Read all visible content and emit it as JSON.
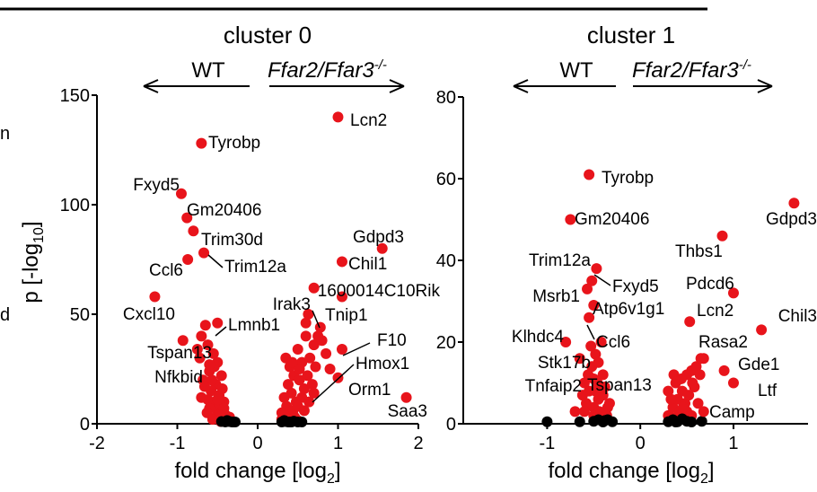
{
  "left_edge_fragments": [
    "n",
    "d"
  ],
  "chart_data": [
    {
      "type": "scatter",
      "title": "cluster 0",
      "direction_left": "WT",
      "direction_right": "Ffar2/Ffar3",
      "direction_right_sup": "-/-",
      "xlabel": "fold change [log",
      "xlabel_sub": "2",
      "xlabel_end": "]",
      "ylabel": "p [-log",
      "ylabel_sub": "10",
      "ylabel_end": "]",
      "xlim": [
        -2,
        2
      ],
      "ylim": [
        0,
        150
      ],
      "xticks": [
        "-2",
        "-1",
        "0",
        "1",
        "2"
      ],
      "xtick_values": [
        -2,
        -1,
        0,
        1,
        2
      ],
      "yticks": [
        "0",
        "50",
        "100",
        "150"
      ],
      "ytick_values": [
        0,
        50,
        100,
        150
      ],
      "colors": {
        "significant": "#e8141b",
        "non_significant": "#000000"
      },
      "labeled_points": [
        {
          "gene": "Lcn2",
          "x": 1.0,
          "y": 140
        },
        {
          "gene": "Tyrobp",
          "x": -0.7,
          "y": 128
        },
        {
          "gene": "Fxyd5",
          "x": -0.95,
          "y": 105
        },
        {
          "gene": "Gm20406",
          "x": -0.88,
          "y": 94
        },
        {
          "gene": "Trim30d",
          "x": -0.8,
          "y": 88
        },
        {
          "gene": "Gdpd3",
          "x": 1.55,
          "y": 80
        },
        {
          "gene": "Trim12a",
          "x": -0.67,
          "y": 78
        },
        {
          "gene": "Ccl6",
          "x": -0.87,
          "y": 75
        },
        {
          "gene": "Chil1",
          "x": 1.05,
          "y": 74
        },
        {
          "gene": "1600014C10Rik",
          "x": 1.05,
          "y": 58
        },
        {
          "gene": "Irak3",
          "x": 0.7,
          "y": 62
        },
        {
          "gene": "Cxcl10",
          "x": -1.28,
          "y": 58
        },
        {
          "gene": "Tnip1",
          "x": 0.63,
          "y": 50
        },
        {
          "gene": "Lmnb1",
          "x": -0.5,
          "y": 46
        },
        {
          "gene": "F10",
          "x": 1.05,
          "y": 34
        },
        {
          "gene": "Tspan13",
          "x": -0.93,
          "y": 38
        },
        {
          "gene": "Hmox1",
          "x": 0.9,
          "y": 25
        },
        {
          "gene": "Nfkbid",
          "x": -0.6,
          "y": 27
        },
        {
          "gene": "Orm1",
          "x": 1.0,
          "y": 21
        },
        {
          "gene": "Saa3",
          "x": 1.85,
          "y": 12
        }
      ],
      "significant_points": [
        [
          -0.65,
          45
        ],
        [
          -0.7,
          40
        ],
        [
          -0.62,
          36
        ],
        [
          -0.55,
          32
        ],
        [
          -0.72,
          30
        ],
        [
          -0.5,
          28
        ],
        [
          -0.6,
          24
        ],
        [
          -0.45,
          22
        ],
        [
          -0.68,
          20
        ],
        [
          -0.52,
          18
        ],
        [
          -0.58,
          15
        ],
        [
          -0.48,
          13
        ],
        [
          -0.62,
          11
        ],
        [
          -0.42,
          10
        ],
        [
          -0.55,
          8
        ],
        [
          -0.5,
          6
        ],
        [
          -0.45,
          5
        ],
        [
          -0.4,
          4
        ],
        [
          -0.52,
          3
        ],
        [
          -0.38,
          2
        ],
        [
          -0.6,
          7
        ],
        [
          -0.44,
          16
        ],
        [
          -0.7,
          12
        ],
        [
          -0.57,
          20
        ],
        [
          -0.47,
          9
        ],
        [
          -0.63,
          5
        ],
        [
          -0.35,
          3
        ],
        [
          -0.42,
          7
        ],
        [
          -0.5,
          11
        ],
        [
          -0.66,
          17
        ],
        [
          -0.54,
          26
        ],
        [
          -0.75,
          34
        ],
        [
          -0.48,
          4
        ],
        [
          -0.4,
          1.5
        ],
        [
          -0.56,
          2
        ],
        [
          -0.46,
          1
        ],
        [
          0.35,
          30
        ],
        [
          0.4,
          26
        ],
        [
          0.5,
          34
        ],
        [
          0.55,
          28
        ],
        [
          0.6,
          40
        ],
        [
          0.7,
          36
        ],
        [
          0.45,
          22
        ],
        [
          0.38,
          18
        ],
        [
          0.52,
          20
        ],
        [
          0.65,
          30
        ],
        [
          0.42,
          14
        ],
        [
          0.33,
          12
        ],
        [
          0.58,
          16
        ],
        [
          0.48,
          10
        ],
        [
          0.36,
          8
        ],
        [
          0.44,
          6
        ],
        [
          0.3,
          5
        ],
        [
          0.4,
          4
        ],
        [
          0.55,
          12
        ],
        [
          0.62,
          22
        ],
        [
          0.75,
          40
        ],
        [
          0.8,
          38
        ],
        [
          0.85,
          32
        ],
        [
          0.72,
          26
        ],
        [
          0.68,
          18
        ],
        [
          0.5,
          8
        ],
        [
          0.35,
          3
        ],
        [
          0.46,
          3
        ],
        [
          0.3,
          2
        ],
        [
          0.38,
          1.5
        ],
        [
          0.58,
          6
        ],
        [
          0.64,
          10
        ],
        [
          0.52,
          25
        ],
        [
          0.43,
          28
        ],
        [
          0.78,
          44
        ],
        [
          0.6,
          46
        ],
        [
          0.42,
          2
        ],
        [
          0.5,
          1.5
        ],
        [
          0.33,
          4
        ],
        [
          0.7,
          14
        ]
      ],
      "nonsignificant_points": [
        [
          -0.45,
          1
        ],
        [
          -0.4,
          0.5
        ],
        [
          -0.35,
          1
        ],
        [
          -0.3,
          0.5
        ],
        [
          -0.38,
          1.5
        ],
        [
          -0.32,
          0.8
        ],
        [
          -0.28,
          0.4
        ],
        [
          0.3,
          0.5
        ],
        [
          0.35,
          1
        ],
        [
          0.4,
          0.6
        ],
        [
          0.45,
          1.2
        ],
        [
          0.38,
          0.4
        ],
        [
          0.5,
          0.8
        ],
        [
          0.33,
          1.5
        ],
        [
          0.55,
          0.5
        ],
        [
          0.42,
          0.2
        ]
      ]
    },
    {
      "type": "scatter",
      "title": "cluster 1",
      "direction_left": "WT",
      "direction_right": "Ffar2/Ffar3",
      "direction_right_sup": "-/-",
      "xlabel": "fold change [log",
      "xlabel_sub": "2",
      "xlabel_end": "]",
      "xlim": [
        -1.9,
        1.8
      ],
      "ylim": [
        0,
        80
      ],
      "xticks": [
        "-1",
        "0",
        "1"
      ],
      "xtick_values": [
        -1,
        0,
        1
      ],
      "yticks": [
        "0",
        "20",
        "40",
        "60",
        "80"
      ],
      "ytick_values": [
        0,
        20,
        40,
        60,
        80
      ],
      "colors": {
        "significant": "#e8141b",
        "non_significant": "#000000"
      },
      "labeled_points": [
        {
          "gene": "Tyrobp",
          "x": -0.55,
          "y": 61
        },
        {
          "gene": "Gdpd3",
          "x": 1.65,
          "y": 54
        },
        {
          "gene": "Gm20406",
          "x": -0.75,
          "y": 50
        },
        {
          "gene": "Thbs1",
          "x": 0.88,
          "y": 46
        },
        {
          "gene": "Trim12a",
          "x": -0.47,
          "y": 38
        },
        {
          "gene": "Fxyd5",
          "x": -0.52,
          "y": 35
        },
        {
          "gene": "Pdcd6",
          "x": 1.0,
          "y": 32
        },
        {
          "gene": "Msrb1",
          "x": -0.57,
          "y": 33
        },
        {
          "gene": "Atp6v1g1",
          "x": -0.5,
          "y": 29
        },
        {
          "gene": "Lcn2",
          "x": 0.53,
          "y": 25
        },
        {
          "gene": "Chil3",
          "x": 1.3,
          "y": 23
        },
        {
          "gene": "Klhdc4",
          "x": -0.8,
          "y": 20
        },
        {
          "gene": "Ccl6",
          "x": -0.55,
          "y": 26
        },
        {
          "gene": "Rasa2",
          "x": 0.65,
          "y": 16
        },
        {
          "gene": "Stk17b",
          "x": -0.45,
          "y": 15
        },
        {
          "gene": "Gde1",
          "x": 0.9,
          "y": 13
        },
        {
          "gene": "Tnfaip2",
          "x": -0.5,
          "y": 11
        },
        {
          "gene": "Tspan13",
          "x": -0.48,
          "y": 8
        },
        {
          "gene": "Ltf",
          "x": 1.0,
          "y": 10
        },
        {
          "gene": "Camp",
          "x": 0.68,
          "y": 3
        }
      ],
      "significant_points": [
        [
          -0.7,
          3
        ],
        [
          -0.5,
          4
        ],
        [
          -0.55,
          8
        ],
        [
          -0.45,
          6
        ],
        [
          -0.6,
          10
        ],
        [
          -0.4,
          12
        ],
        [
          -0.52,
          14
        ],
        [
          -0.38,
          9
        ],
        [
          -0.48,
          17
        ],
        [
          -0.42,
          20
        ],
        [
          -0.58,
          5
        ],
        [
          -0.35,
          4
        ],
        [
          -0.62,
          7
        ],
        [
          -0.44,
          3
        ],
        [
          -0.5,
          2
        ],
        [
          -0.36,
          2
        ],
        [
          -0.56,
          12
        ],
        [
          -0.46,
          10
        ],
        [
          -0.4,
          7
        ],
        [
          -0.65,
          16
        ],
        [
          -0.53,
          19
        ],
        [
          -0.33,
          5
        ],
        [
          -0.47,
          1.5
        ],
        [
          -0.6,
          3
        ],
        [
          -0.4,
          1.5
        ],
        [
          0.3,
          2
        ],
        [
          0.35,
          4
        ],
        [
          0.4,
          6
        ],
        [
          0.45,
          8
        ],
        [
          0.38,
          10
        ],
        [
          0.5,
          12
        ],
        [
          0.55,
          13
        ],
        [
          0.42,
          3
        ],
        [
          0.33,
          6
        ],
        [
          0.48,
          5
        ],
        [
          0.6,
          14
        ],
        [
          0.58,
          9
        ],
        [
          0.52,
          7
        ],
        [
          0.36,
          12
        ],
        [
          0.44,
          11
        ],
        [
          0.3,
          8
        ],
        [
          0.62,
          5
        ],
        [
          0.68,
          16
        ],
        [
          0.5,
          3
        ],
        [
          0.4,
          1.5
        ],
        [
          0.55,
          2
        ],
        [
          0.34,
          1.5
        ],
        [
          0.46,
          4
        ],
        [
          0.56,
          10
        ],
        [
          0.64,
          12
        ]
      ],
      "nonsignificant_points": [
        [
          -1.0,
          0.5
        ],
        [
          -0.65,
          0.5
        ],
        [
          -0.45,
          1
        ],
        [
          -0.4,
          0.4
        ],
        [
          -0.35,
          1
        ],
        [
          -0.3,
          0.5
        ],
        [
          -0.38,
          0.8
        ],
        [
          -0.5,
          0.6
        ],
        [
          0.3,
          0.5
        ],
        [
          0.35,
          1
        ],
        [
          0.4,
          0.5
        ],
        [
          0.45,
          1.2
        ],
        [
          0.5,
          0.6
        ],
        [
          0.55,
          0.4
        ],
        [
          0.38,
          0.3
        ],
        [
          0.66,
          0.6
        ]
      ]
    }
  ]
}
